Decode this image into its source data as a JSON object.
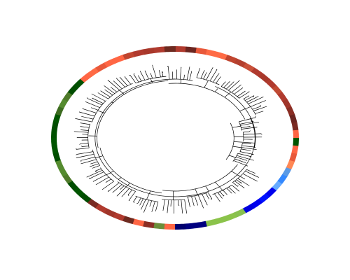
{
  "ring": {
    "colors": [
      "#b03a2e",
      "#6b2520",
      "#e8583a",
      "#ff6b45",
      "#ff6b45",
      "#c0452f",
      "#b3402f",
      "#c9513a",
      "#b03a2e",
      "#a8382b",
      "#b03a2e",
      "#c04a33",
      "#b03a2e",
      "#a0352a",
      "#8a2e24",
      "#6b2520",
      "#7a2a22",
      "#ff6644",
      "#005500",
      "#ff6644",
      "#e8583a",
      "#ff8855",
      "#5a9ae6",
      "#3388ff",
      "#66aaff",
      "#0000ee",
      "#0011ff",
      "#0000ee",
      "#0000dd",
      "#88c050",
      "#8bc34a",
      "#8bc34a",
      "#8bc34a",
      "#000080",
      "#000080",
      "#00006e",
      "#ff6644",
      "#6b8e3a",
      "#8a2e24",
      "#ff6644",
      "#6e2a20",
      "#b03a2e",
      "#a0352a",
      "#b03a2e",
      "#7a2a22",
      "#004d00",
      "#005500",
      "#004d00",
      "#4f7a2a",
      "#558b2f",
      "#558b2f",
      "#004d00",
      "#005500",
      "#005500",
      "#005000",
      "#004d00",
      "#005500",
      "#3d6b20",
      "#558b2f",
      "#4f7a2a",
      "#004d00",
      "#005000",
      "#ff6644",
      "#ff6b45",
      "#e8583a",
      "#ff6644",
      "#ff6644",
      "#c0452f",
      "#b03a2e",
      "#a8382b",
      "#b03a2e",
      "#6e2a20"
    ]
  }
}
